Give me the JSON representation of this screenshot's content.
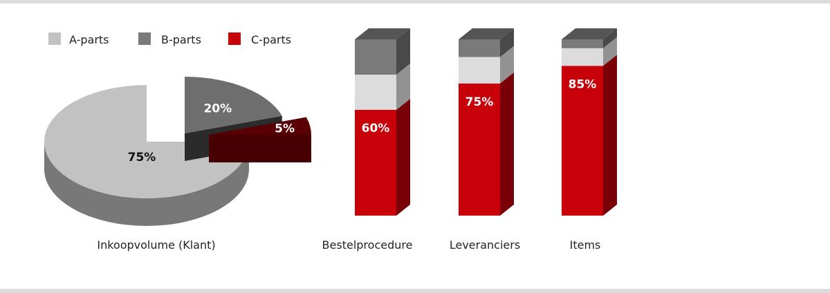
{
  "colors": {
    "a_parts": "#c2c2c2",
    "b_parts": "#7a7a7a",
    "c_parts": "#c8000a",
    "frame_rule": "#dcdcdc"
  },
  "legend": {
    "placement": "top-left",
    "items": [
      {
        "label": "A-parts",
        "color": "#c2c2c2"
      },
      {
        "label": "B-parts",
        "color": "#7a7a7a"
      },
      {
        "label": "C-parts",
        "color": "#c8000a"
      }
    ]
  },
  "chart_data": [
    {
      "type": "pie",
      "title": "Inkoopvolume (Klant)",
      "series": [
        {
          "name": "A-parts",
          "value": 75,
          "label": "75%"
        },
        {
          "name": "B-parts",
          "value": 20,
          "label": "20%"
        },
        {
          "name": "C-parts",
          "value": 5,
          "label": "5%"
        }
      ]
    },
    {
      "type": "bar",
      "stacked": true,
      "categories": [
        "Bestelprocedure",
        "Leveranciers",
        "Items"
      ],
      "series": [
        {
          "name": "C-parts",
          "values": [
            60,
            75,
            85
          ],
          "labels": [
            "60%",
            "75%",
            "85%"
          ]
        },
        {
          "name": "A-parts",
          "values": [
            20,
            15,
            10
          ]
        },
        {
          "name": "B-parts",
          "values": [
            20,
            10,
            5
          ]
        }
      ],
      "ylim": [
        0,
        100
      ]
    }
  ]
}
